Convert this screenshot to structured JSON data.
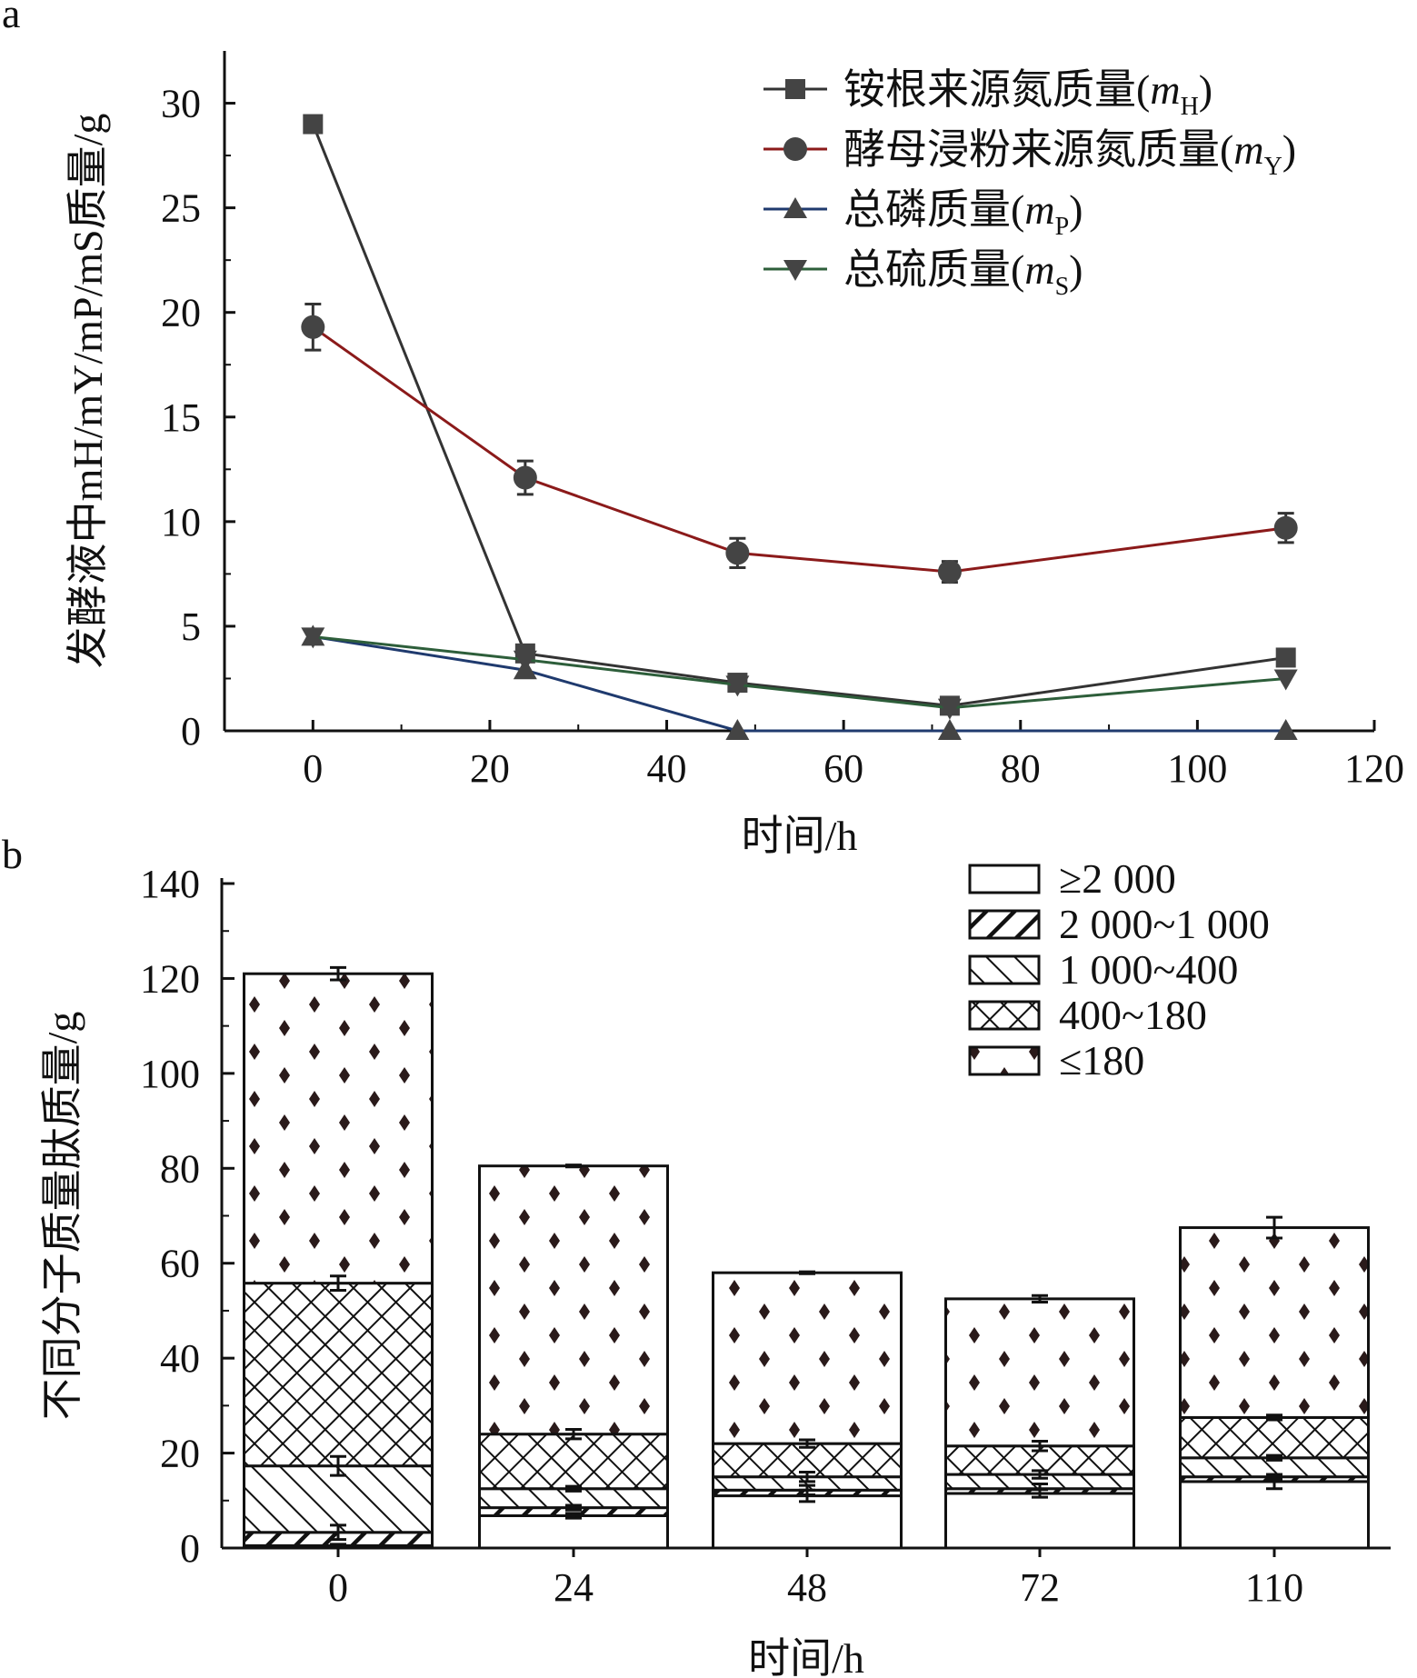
{
  "chart_data": [
    {
      "type": "line",
      "panel_label": "a",
      "xlabel": "时间/h",
      "ylabel": "发酵液中mH/mY/mP/mS质量/g",
      "xlim": [
        -10,
        120
      ],
      "ylim": [
        0,
        32.5
      ],
      "xticks": [
        "0",
        "20",
        "40",
        "60",
        "80",
        "100",
        "120"
      ],
      "yticks": [
        "0",
        "5",
        "10",
        "15",
        "20",
        "25",
        "30"
      ],
      "legend_position": "top-right",
      "x": [
        0,
        24,
        48,
        72,
        110
      ],
      "series": [
        {
          "name": "铵根来源氮质量(mH)",
          "label": "铵根来源氮质量(",
          "var": "m",
          "sub": "H",
          "marker": "square",
          "color": "#333333",
          "values": [
            29,
            3.7,
            2.3,
            1.2,
            3.5
          ],
          "errors": [
            0.2,
            0.2,
            0.1,
            0.1,
            0.2
          ]
        },
        {
          "name": "酵母浸粉来源氮质量(mY)",
          "label": "酵母浸粉来源氮质量(",
          "var": "m",
          "sub": "Y",
          "marker": "circle",
          "color": "#8b1a1a",
          "values": [
            19.3,
            12.1,
            8.5,
            7.6,
            9.7
          ],
          "errors": [
            1.1,
            0.8,
            0.7,
            0.5,
            0.7
          ]
        },
        {
          "name": "总磷质量(mP)",
          "label": "总磷质量(",
          "var": "m",
          "sub": "P",
          "marker": "triangle-up",
          "color": "#1f3a6e",
          "values": [
            4.5,
            2.9,
            0,
            0,
            0
          ],
          "errors": [
            0.1,
            0.1,
            0,
            0,
            0
          ]
        },
        {
          "name": "总硫质量(mS)",
          "label": "总硫质量(",
          "var": "m",
          "sub": "S",
          "marker": "triangle-down",
          "color": "#2d5e3a",
          "values": [
            4.5,
            3.4,
            2.2,
            1.1,
            2.5
          ],
          "errors": [
            0.1,
            0.1,
            0.1,
            0.1,
            0.1
          ]
        }
      ]
    },
    {
      "type": "bar",
      "stacked": true,
      "panel_label": "b",
      "xlabel": "时间/h",
      "ylabel": "不同分子质量肽质量/g",
      "ylim": [
        0,
        140
      ],
      "yticks": [
        "0",
        "20",
        "40",
        "60",
        "80",
        "100",
        "120",
        "140"
      ],
      "categories": [
        "0",
        "24",
        "48",
        "72",
        "110"
      ],
      "legend_position": "top-right",
      "series": [
        {
          "name": "≥2 000",
          "pattern": "blank",
          "values": [
            0.5,
            6.8,
            11,
            11.5,
            14
          ],
          "errors": [
            0.3,
            0.5,
            1.2,
            0.8,
            1.5
          ]
        },
        {
          "name": "2 000~1 000",
          "pattern": "hatch-right",
          "values": [
            2.8,
            1.7,
            1.2,
            1,
            1
          ],
          "errors": [
            1.5,
            0.5,
            1,
            1,
            0.5
          ]
        },
        {
          "name": "1 000~400",
          "pattern": "hatch-left",
          "values": [
            14,
            4,
            2.8,
            3,
            4
          ],
          "errors": [
            2,
            0.5,
            1,
            0.8,
            0.5
          ]
        },
        {
          "name": "400~180",
          "pattern": "crosshatch",
          "values": [
            38.5,
            11.5,
            7,
            6,
            8.5
          ],
          "errors": [
            1.5,
            1,
            0.8,
            1,
            0.5
          ]
        },
        {
          "name": "≤180",
          "pattern": "diamonds",
          "values": [
            65.2,
            56.5,
            36,
            31,
            40
          ],
          "errors": [
            1.3,
            0.2,
            0.2,
            0.7,
            2.2
          ]
        }
      ]
    }
  ]
}
